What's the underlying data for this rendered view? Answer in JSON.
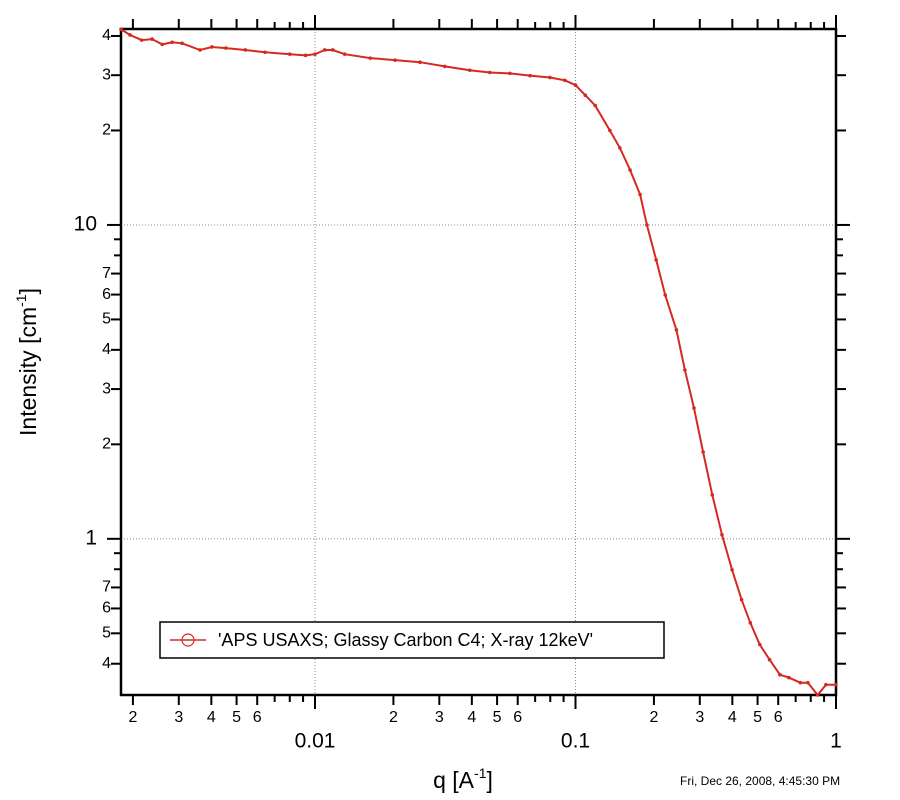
{
  "chart_data": {
    "type": "line",
    "log_x": true,
    "log_y": true,
    "xlabel": [
      "q [A",
      "-1",
      "]"
    ],
    "ylabel": [
      "Intensity [cm",
      "-1",
      "]"
    ],
    "timestamp": "Fri, Dec 26, 2008, 4:45:30 PM",
    "legend": "lower left",
    "grid": "decades",
    "xlim": [
      0.0018,
      1
    ],
    "ylim": [
      0.318,
      42.1
    ],
    "xticks": [
      {
        "value": 0.002,
        "label": "2"
      },
      {
        "value": 0.003,
        "label": "3"
      },
      {
        "value": 0.004,
        "label": "4"
      },
      {
        "value": 0.005,
        "label": "5"
      },
      {
        "value": 0.006,
        "label": "6"
      },
      0.01,
      {
        "value": 0.02,
        "label": "2"
      },
      {
        "value": 0.03,
        "label": "3"
      },
      {
        "value": 0.04,
        "label": "4"
      },
      {
        "value": 0.05,
        "label": "5"
      },
      {
        "value": 0.06,
        "label": "6"
      },
      0.1,
      {
        "value": 0.2,
        "label": "2"
      },
      {
        "value": 0.3,
        "label": "3"
      },
      {
        "value": 0.4,
        "label": "4"
      },
      {
        "value": 0.5,
        "label": "5"
      },
      {
        "value": 0.6,
        "label": "6"
      },
      1
    ],
    "yticks": [
      {
        "value": 0.4,
        "label": "4"
      },
      {
        "value": 0.5,
        "label": "5"
      },
      {
        "value": 0.6,
        "label": "6"
      },
      {
        "value": 0.7,
        "label": "7"
      },
      1,
      2,
      3,
      4,
      5,
      6,
      7,
      10,
      {
        "value": 20,
        "label": "2"
      },
      {
        "value": 30,
        "label": "3"
      },
      {
        "value": 40,
        "label": "4"
      }
    ],
    "series": [
      {
        "name": "'APS USAXS; Glassy Carbon C4; X-ray 12keV'",
        "color": "#d42a22",
        "x": [
          0.0018,
          0.00195,
          0.00216,
          0.00237,
          0.00259,
          0.00283,
          0.00309,
          0.00362,
          0.00402,
          0.00455,
          0.0054,
          0.00643,
          0.008,
          0.0092,
          0.01,
          0.0109,
          0.0117,
          0.013,
          0.0163,
          0.0203,
          0.0253,
          0.0315,
          0.0393,
          0.0469,
          0.056,
          0.0669,
          0.0798,
          0.091,
          0.1,
          0.109,
          0.119,
          0.1355,
          0.148,
          0.162,
          0.177,
          0.188,
          0.204,
          0.221,
          0.244,
          0.263,
          0.285,
          0.309,
          0.335,
          0.365,
          0.399,
          0.434,
          0.469,
          0.51,
          0.556,
          0.609,
          0.66,
          0.73,
          0.78,
          0.85,
          0.915,
          1.0
        ],
        "values": [
          42,
          40.3,
          38.8,
          39.1,
          37.6,
          38.2,
          37.9,
          36.1,
          36.9,
          36.6,
          36.1,
          35.5,
          35.0,
          34.7,
          35.0,
          36.1,
          36.1,
          35.0,
          34.0,
          33.5,
          33.0,
          32.0,
          31.1,
          30.6,
          30.4,
          29.9,
          29.5,
          28.9,
          27.9,
          25.9,
          24.0,
          20.0,
          17.6,
          14.96,
          12.5,
          10,
          7.74,
          5.98,
          4.63,
          3.45,
          2.61,
          1.89,
          1.38,
          1.03,
          0.797,
          0.64,
          0.54,
          0.46,
          0.412,
          0.369,
          0.361,
          0.348,
          0.348,
          0.318,
          0.343,
          0.343
        ]
      }
    ]
  }
}
